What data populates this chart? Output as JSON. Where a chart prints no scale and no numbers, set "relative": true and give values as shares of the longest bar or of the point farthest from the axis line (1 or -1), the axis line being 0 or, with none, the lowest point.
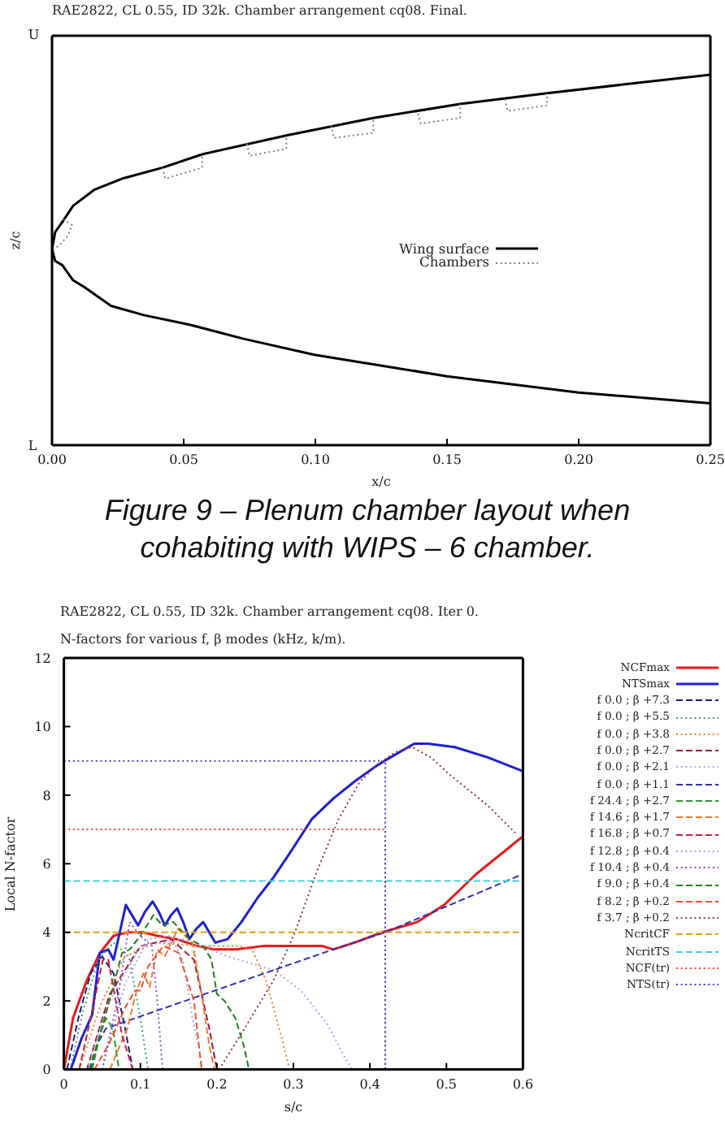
{
  "chart_data": [
    {
      "type": "line",
      "title": "RAE2822, CL 0.55, ID 32k. Chamber arrangement cq08. Final.",
      "xlabel": "x/c",
      "ylabel": "z/c",
      "annotations": [
        "U",
        "L",
        "Figure 9 – Plenum chamber layout when cohabiting with WIPS – 6 chamber."
      ],
      "relative": true,
      "xlim": [
        0,
        0.25
      ],
      "xticks": [
        {
          "value": 0,
          "label": "0.00"
        },
        0.05,
        {
          "value": 0.1,
          "label": "0.10"
        },
        0.15,
        {
          "value": 0.2,
          "label": "0.20"
        },
        0.25
      ],
      "legend": "right",
      "series": [
        {
          "name": "Wing surface",
          "color": "#000000",
          "line_style": "solid",
          "x": [
            0.25,
            0.188,
            0.155,
            0.122,
            0.089,
            0.057,
            0.042,
            0.0265,
            0.0162,
            0.008,
            0.0039,
            0.0012,
            0,
            0.0012,
            0.0039,
            0.008,
            0.0122,
            0.0224,
            0.0348,
            0.0523,
            0.0728,
            0.0996,
            0.15,
            0.2,
            0.25
          ],
          "values": [
            1,
            0.95,
            0.921,
            0.883,
            0.836,
            0.785,
            0.749,
            0.719,
            0.69,
            0.646,
            0.602,
            0.575,
            0.529,
            0.497,
            0.486,
            0.445,
            0.427,
            0.376,
            0.351,
            0.325,
            0.287,
            0.244,
            0.186,
            0.142,
            0.113
          ]
        },
        {
          "name": "Chambers",
          "color": "#808080",
          "line_style": "dotted",
          "x": [
            0.0043,
            0.0076,
            0.006,
            0.0031,
            0.0006,
            0.02,
            0.042,
            0.043,
            0.057,
            0.057,
            0.065,
            0.074,
            0.075,
            0.089,
            0.089,
            0.1,
            0.106,
            0.107,
            0.122,
            0.122,
            0.13,
            0.139,
            0.14,
            0.155,
            0.155,
            0.165,
            0.172,
            0.173,
            0.188,
            0.188
          ],
          "values": [
            0.61,
            0.594,
            0.565,
            0.541,
            0.529,
            null,
            0.749,
            0.719,
            0.749,
            0.785,
            null,
            0.814,
            0.781,
            0.8,
            0.836,
            null,
            0.863,
            0.829,
            0.843,
            0.883,
            null,
            0.895,
            0.868,
            0.883,
            0.921,
            null,
            0.934,
            0.902,
            0.917,
            0.95
          ]
        }
      ]
    },
    {
      "type": "line",
      "title": "RAE2822, CL 0.55, ID 32k. Chamber arrangement cq08. Iter 0.",
      "subtitle": "N-factors for various f, β modes (kHz, k/m).",
      "xlabel": "s/c",
      "ylabel": "Local N-factor",
      "xlim": [
        0,
        0.6
      ],
      "xticks": [
        0,
        0.1,
        0.2,
        0.3,
        0.4,
        0.5,
        0.6
      ],
      "ylim": [
        0,
        12
      ],
      "yticks": [
        0,
        2,
        4,
        6,
        8,
        10,
        12
      ],
      "legend": "right",
      "series": [
        {
          "name": "NCFmax",
          "color": "#e8191a",
          "line_style": "solid",
          "x": [
            0,
            0.012,
            0.03,
            0.047,
            0.065,
            0.083,
            0.104,
            0.122,
            0.147,
            0.175,
            0.196,
            0.225,
            0.26,
            0.31,
            0.338,
            0.352,
            0.38,
            0.416,
            0.462,
            0.497,
            0.539,
            0.6
          ],
          "values": [
            0,
            1.5,
            2.6,
            3.4,
            3.9,
            4.0,
            4.0,
            3.9,
            3.8,
            3.6,
            3.5,
            3.5,
            3.6,
            3.6,
            3.6,
            3.5,
            3.7,
            4.0,
            4.3,
            4.8,
            5.7,
            6.8
          ]
        },
        {
          "name": "NTSmax",
          "color": "#1f1fd0",
          "line_style": "solid",
          "x": [
            0.009,
            0.023,
            0.037,
            0.047,
            0.058,
            0.065,
            0.073,
            0.081,
            0.089,
            0.097,
            0.106,
            0.116,
            0.124,
            0.132,
            0.14,
            0.148,
            0.156,
            0.164,
            0.173,
            0.182,
            0.19,
            0.198,
            0.214,
            0.232,
            0.253,
            0.274,
            0.295,
            0.324,
            0.352,
            0.38,
            0.405,
            0.419,
            0.458,
            0.476,
            0.511,
            0.554,
            0.6
          ],
          "values": [
            0,
            0.9,
            1.6,
            3.4,
            3.5,
            3.2,
            4.0,
            4.8,
            4.5,
            4.2,
            4.6,
            4.9,
            4.6,
            4.2,
            4.5,
            4.7,
            4.3,
            3.8,
            4.1,
            4.3,
            4.0,
            3.7,
            3.8,
            4.3,
            5.0,
            5.6,
            6.3,
            7.3,
            7.9,
            8.4,
            8.8,
            9.0,
            9.5,
            9.5,
            9.4,
            9.1,
            8.7
          ]
        },
        {
          "name": "f 0.0 ; β +7.3",
          "color": "#1c1c7a",
          "line_style": "dashed",
          "x": [
            0.004,
            0.02,
            0.035,
            0.05,
            0.065,
            0.08,
            0.09
          ],
          "values": [
            0,
            1.6,
            2.8,
            3.3,
            2.8,
            1.2,
            0
          ]
        },
        {
          "name": "f 0.0 ; β +5.5",
          "color": "#3a9a8a",
          "line_style": "dotted",
          "x": [
            0.008,
            0.025,
            0.045,
            0.065,
            0.085,
            0.1,
            0.11
          ],
          "values": [
            0,
            1.7,
            3.2,
            3.7,
            3.3,
            1.5,
            0
          ]
        },
        {
          "name": "f 0.0 ; β +3.8",
          "color": "#f08030",
          "line_style": "dotted",
          "x": [
            0.02,
            0.05,
            0.08,
            0.12,
            0.18,
            0.23,
            0.246,
            0.264,
            0.274,
            0.285,
            0.295
          ],
          "values": [
            0,
            2.0,
            3.3,
            3.7,
            3.6,
            3.6,
            3.5,
            2.6,
            1.8,
            0.9,
            0
          ]
        },
        {
          "name": "f 0.0 ; β +2.7",
          "color": "#a01838",
          "line_style": "dashed",
          "x": [
            0.03,
            0.06,
            0.1,
            0.14,
            0.17,
            0.19,
            0.2
          ],
          "values": [
            0,
            2.2,
            3.6,
            3.8,
            3.2,
            1.2,
            0
          ]
        },
        {
          "name": "f 0.0 ; β +2.1",
          "color": "#b8a0e8",
          "line_style": "dotted",
          "x": [
            0.03,
            0.06,
            0.1,
            0.157,
            0.214,
            0.274,
            0.31,
            0.345,
            0.366,
            0.377
          ],
          "values": [
            0,
            2.0,
            3.6,
            3.8,
            3.3,
            2.9,
            2.3,
            1.3,
            0.4,
            0
          ]
        },
        {
          "name": "f 0.0 ; β +1.1",
          "color": "#3030b0",
          "line_style": "dashed",
          "x": [
            0.035,
            0.045,
            0.055,
            0.352,
            0.42,
            0.6
          ],
          "values": [
            0,
            0.8,
            1.2,
            3.5,
            4.0,
            5.7
          ]
        },
        {
          "name": "f 24.4 ; β +2.7",
          "color": "#2a9a2a",
          "line_style": "dashed",
          "x": [
            0.037,
            0.047,
            0.055,
            0.064,
            0.072
          ],
          "values": [
            0,
            1.0,
            1.5,
            1.2,
            0
          ]
        },
        {
          "name": "f 14.6 ; β +1.7",
          "color": "#f07830",
          "line_style": "dashed",
          "x": [
            0.06,
            0.083,
            0.095,
            0.104,
            0.112,
            0.122,
            0.132,
            0.149,
            0.168,
            0.18,
            0.19,
            0.197
          ],
          "values": [
            0,
            1.2,
            2.3,
            2.8,
            2.4,
            3.5,
            3.3,
            4.1,
            3.7,
            2.2,
            0.7,
            0
          ]
        },
        {
          "name": "f 16.8 ; β +0.7",
          "color": "#c02040",
          "line_style": "dashed",
          "x": [
            0.02,
            0.035,
            0.051,
            0.058,
            0.076,
            0.09
          ],
          "values": [
            0,
            1.5,
            3.2,
            3.2,
            1.0,
            0
          ]
        },
        {
          "name": "f 12.8 ; β +0.4",
          "color": "#a0a0f0",
          "line_style": "dotted",
          "x": [
            0.05,
            0.08,
            0.11,
            0.14,
            0.155,
            0.161,
            0.168,
            0.176,
            0.181
          ],
          "values": [
            0,
            2.5,
            3.8,
            3.9,
            3.2,
            2.5,
            1.5,
            0.7,
            0
          ]
        },
        {
          "name": "f 10.4 ; β +0.4",
          "color": "#9050d0",
          "line_style": "dotted",
          "x": [
            0.05,
            0.07,
            0.086,
            0.1,
            0.115,
            0.122,
            0.129
          ],
          "values": [
            0,
            2.0,
            4.3,
            3.9,
            3.6,
            2.0,
            0
          ]
        },
        {
          "name": "f 9.0 ; β +0.4",
          "color": "#208020",
          "line_style": "dashed",
          "x": [
            0.033,
            0.047,
            0.062,
            0.076,
            0.086,
            0.1,
            0.117,
            0.129,
            0.143,
            0.164,
            0.182,
            0.193,
            0.2,
            0.21,
            0.224,
            0.235,
            0.242
          ],
          "values": [
            0,
            1.0,
            2.2,
            3.4,
            3.5,
            3.9,
            4.5,
            4.2,
            4.3,
            3.8,
            3.6,
            3.2,
            2.2,
            2.0,
            1.5,
            0.7,
            0
          ]
        },
        {
          "name": "f 8.2 ; β +0.2",
          "color": "#f05030",
          "line_style": "dashed",
          "x": [
            0.04,
            0.06,
            0.08,
            0.093,
            0.1,
            0.11,
            0.13,
            0.15,
            0.17,
            0.18
          ],
          "values": [
            0,
            0.8,
            1.8,
            2.3,
            2.3,
            3.0,
            3.6,
            3.4,
            2.0,
            0
          ]
        },
        {
          "name": "f 3.7 ; β +0.2",
          "color": "#903050",
          "line_style": "dotted",
          "x": [
            0.203,
            0.239,
            0.274,
            0.302,
            0.331,
            0.359,
            0.387,
            0.41,
            0.433,
            0.455,
            0.48,
            0.504,
            0.554,
            0.59
          ],
          "values": [
            0,
            1.3,
            2.6,
            4.0,
            5.8,
            7.3,
            8.4,
            8.9,
            9.25,
            9.4,
            9.1,
            8.6,
            7.7,
            6.9
          ]
        },
        {
          "name": "NcritCF",
          "color": "#e0a020",
          "line_style": "dashed",
          "x": [
            0,
            0.6
          ],
          "values": [
            4,
            4
          ]
        },
        {
          "name": "NcritTS",
          "color": "#40d0e0",
          "line_style": "dashed",
          "x": [
            0,
            0.6
          ],
          "values": [
            5.5,
            5.5
          ]
        },
        {
          "name": "NCF(tr)",
          "color": "#f04040",
          "line_style": "dotted",
          "x": [
            0,
            0.42,
            0.42
          ],
          "values": [
            7,
            7,
            0
          ]
        },
        {
          "name": "NTS(tr)",
          "color": "#4040e0",
          "line_style": "dotted",
          "x": [
            0,
            0.42,
            0.42
          ],
          "values": [
            9,
            9,
            0
          ]
        }
      ]
    }
  ]
}
